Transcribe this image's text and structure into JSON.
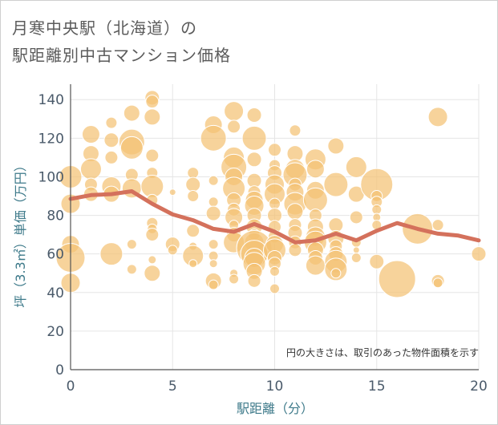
{
  "header": {
    "title_line1": "月寒中央駅（北海道）の",
    "title_line2": "駅距離別中古マンション価格"
  },
  "chart_data": {
    "type": "scatter",
    "title": "月寒中央駅（北海道）の駅距離別中古マンション価格",
    "xlabel": "駅距離（分）",
    "ylabel": "坪（3.3㎡）単価（万円）",
    "xlim": [
      0,
      20
    ],
    "ylim": [
      0,
      148
    ],
    "x_ticks": [
      0,
      5,
      10,
      15,
      20
    ],
    "y_ticks": [
      0,
      20,
      40,
      60,
      80,
      100,
      120,
      140
    ],
    "grid": true,
    "note": "円の大きさは、取引のあった物件面積を示す",
    "colors": {
      "bubble": "#f4c274",
      "trend": "#d4715c",
      "grid": "#e5e5e5"
    },
    "series": [
      {
        "type": "bubble",
        "points": [
          [
            0,
            100,
            14
          ],
          [
            0,
            86,
            12
          ],
          [
            0,
            65,
            11
          ],
          [
            0,
            58,
            18
          ],
          [
            0,
            45,
            12
          ],
          [
            1,
            122,
            11
          ],
          [
            1,
            112,
            10
          ],
          [
            1,
            104,
            13
          ],
          [
            1,
            96,
            8
          ],
          [
            1,
            91,
            9
          ],
          [
            2,
            128,
            7
          ],
          [
            2,
            119,
            9
          ],
          [
            2,
            110,
            8
          ],
          [
            2,
            95,
            12
          ],
          [
            2,
            91,
            10
          ],
          [
            2,
            60,
            14
          ],
          [
            3,
            133,
            10
          ],
          [
            3,
            118,
            16
          ],
          [
            3,
            115,
            14
          ],
          [
            3,
            101,
            8
          ],
          [
            3,
            94,
            12
          ],
          [
            3,
            65,
            6
          ],
          [
            3,
            52,
            6
          ],
          [
            4,
            141,
            9
          ],
          [
            4,
            139,
            8
          ],
          [
            4,
            131,
            10
          ],
          [
            4,
            111,
            8
          ],
          [
            4,
            102,
            7
          ],
          [
            4,
            95,
            14
          ],
          [
            4,
            88,
            7
          ],
          [
            4,
            76,
            7
          ],
          [
            4,
            73,
            6
          ],
          [
            4,
            70,
            8
          ],
          [
            4,
            57,
            5
          ],
          [
            4,
            50,
            10
          ],
          [
            5,
            92,
            4
          ],
          [
            5,
            65,
            9
          ],
          [
            5,
            62,
            6
          ],
          [
            6,
            102,
            7
          ],
          [
            6,
            96,
            9
          ],
          [
            6,
            90,
            7
          ],
          [
            6,
            72,
            8
          ],
          [
            6,
            64,
            5
          ],
          [
            6,
            59,
            13
          ],
          [
            6,
            55,
            5
          ],
          [
            7,
            127,
            11
          ],
          [
            7,
            120,
            16
          ],
          [
            7,
            98,
            6
          ],
          [
            7,
            87,
            6
          ],
          [
            7,
            81,
            9
          ],
          [
            7,
            65,
            6
          ],
          [
            7,
            59,
            6
          ],
          [
            7,
            55,
            5
          ],
          [
            7,
            46,
            10
          ],
          [
            7,
            44,
            6
          ],
          [
            8,
            134,
            12
          ],
          [
            8,
            126,
            8
          ],
          [
            8,
            110,
            13
          ],
          [
            8,
            105,
            16
          ],
          [
            8,
            100,
            11
          ],
          [
            8,
            94,
            14
          ],
          [
            8,
            88,
            9
          ],
          [
            8,
            83,
            8
          ],
          [
            8,
            79,
            11
          ],
          [
            8,
            75,
            6
          ],
          [
            8,
            70,
            9
          ],
          [
            8,
            66,
            13
          ],
          [
            8,
            50,
            5
          ],
          [
            8,
            47,
            6
          ],
          [
            9,
            132,
            9
          ],
          [
            9,
            120,
            15
          ],
          [
            9,
            109,
            9
          ],
          [
            9,
            98,
            9
          ],
          [
            9,
            92,
            8
          ],
          [
            9,
            88,
            11
          ],
          [
            9,
            85,
            12
          ],
          [
            9,
            80,
            9
          ],
          [
            9,
            74,
            10
          ],
          [
            9,
            70,
            7
          ],
          [
            9,
            66,
            12
          ],
          [
            9,
            63,
            22
          ],
          [
            9,
            60,
            17
          ],
          [
            9,
            58,
            12
          ],
          [
            9,
            55,
            14
          ],
          [
            9,
            51,
            10
          ],
          [
            9,
            46,
            8
          ],
          [
            10,
            114,
            8
          ],
          [
            10,
            106,
            7
          ],
          [
            10,
            102,
            9
          ],
          [
            10,
            96,
            12
          ],
          [
            10,
            91,
            13
          ],
          [
            10,
            86,
            7
          ],
          [
            10,
            80,
            9
          ],
          [
            10,
            74,
            8
          ],
          [
            10,
            69,
            8
          ],
          [
            10,
            65,
            11
          ],
          [
            10,
            62,
            14
          ],
          [
            10,
            58,
            9
          ],
          [
            10,
            55,
            8
          ],
          [
            10,
            51,
            6
          ],
          [
            10,
            42,
            6
          ],
          [
            11,
            124,
            7
          ],
          [
            11,
            112,
            10
          ],
          [
            11,
            104,
            12
          ],
          [
            11,
            101,
            15
          ],
          [
            11,
            96,
            8
          ],
          [
            11,
            92,
            11
          ],
          [
            11,
            86,
            14
          ],
          [
            11,
            82,
            10
          ],
          [
            11,
            75,
            8
          ],
          [
            11,
            71,
            9
          ],
          [
            11,
            66,
            8
          ],
          [
            11,
            62,
            8
          ],
          [
            12,
            109,
            13
          ],
          [
            12,
            104,
            11
          ],
          [
            12,
            93,
            11
          ],
          [
            12,
            88,
            15
          ],
          [
            12,
            80,
            8
          ],
          [
            12,
            74,
            10
          ],
          [
            12,
            69,
            12
          ],
          [
            12,
            66,
            14
          ],
          [
            12,
            62,
            10
          ],
          [
            12,
            58,
            9
          ],
          [
            12,
            54,
            12
          ],
          [
            13,
            116,
            10
          ],
          [
            13,
            96,
            15
          ],
          [
            13,
            75,
            9
          ],
          [
            13,
            68,
            10
          ],
          [
            13,
            64,
            8
          ],
          [
            13,
            60,
            9
          ],
          [
            13,
            56,
            14
          ],
          [
            13,
            52,
            14
          ],
          [
            13,
            50,
            6
          ],
          [
            14,
            105,
            13
          ],
          [
            14,
            91,
            10
          ],
          [
            14,
            79,
            8
          ],
          [
            14,
            66,
            6
          ],
          [
            14,
            62,
            4
          ],
          [
            14,
            58,
            6
          ],
          [
            15,
            96,
            20
          ],
          [
            15,
            90,
            7
          ],
          [
            15,
            87,
            7
          ],
          [
            15,
            83,
            6
          ],
          [
            15,
            79,
            5
          ],
          [
            15,
            75,
            6
          ],
          [
            15,
            56,
            9
          ],
          [
            16,
            47,
            23
          ],
          [
            17,
            73,
            19
          ],
          [
            18,
            131,
            12
          ],
          [
            18,
            75,
            7
          ],
          [
            18,
            46,
            8
          ],
          [
            18,
            45,
            6
          ],
          [
            20,
            60,
            9
          ]
        ]
      },
      {
        "type": "line",
        "x": [
          0,
          1,
          2,
          3,
          4,
          5,
          6,
          7,
          8,
          9,
          10,
          11,
          12,
          13,
          14,
          15,
          16,
          17,
          18,
          19,
          20
        ],
        "y": [
          88.5,
          90.5,
          91,
          92.5,
          86,
          80.5,
          77.5,
          73,
          71.5,
          75.5,
          71.5,
          66,
          67,
          70.5,
          67,
          72,
          76,
          73,
          70.5,
          69.5,
          67
        ]
      }
    ]
  }
}
